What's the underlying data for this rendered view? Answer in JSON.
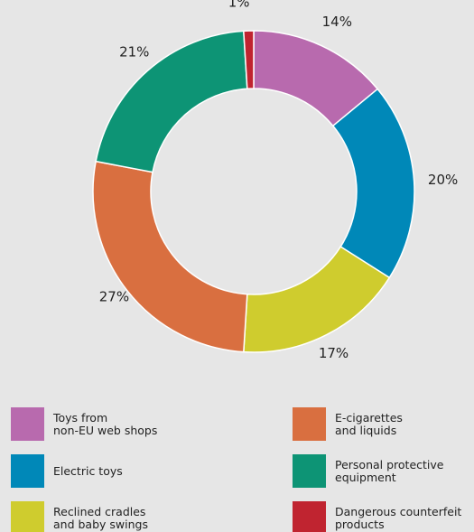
{
  "chart_data": {
    "type": "pie",
    "variant": "donut",
    "categories": [
      "Toys from\nnon-EU web shops",
      "Electric toys",
      "Reclined cradles\nand baby swings",
      "E-cigarettes\nand liquids",
      "Personal protective\nequipment",
      "Dangerous counterfeit\nproducts"
    ],
    "values": [
      14,
      20,
      17,
      27,
      21,
      1
    ],
    "labels": [
      "14%",
      "20%",
      "17%",
      "27%",
      "21%",
      "1%"
    ],
    "colors": [
      "#b86aae",
      "#0088b8",
      "#cfcc2e",
      "#d96f40",
      "#0d9475",
      "#c02430"
    ],
    "legend": "bottom"
  }
}
